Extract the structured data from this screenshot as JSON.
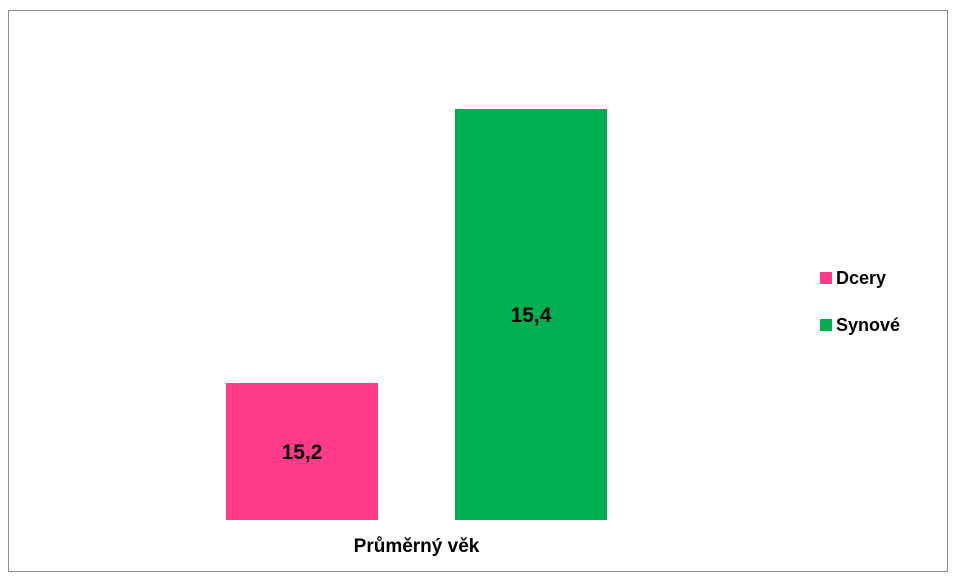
{
  "chart_data": {
    "type": "bar",
    "categories": [
      "Průměrný věk"
    ],
    "series": [
      {
        "name": "Dcery",
        "color": "#ff3b8a",
        "values": [
          15.2
        ],
        "value_labels": [
          "15,2"
        ]
      },
      {
        "name": "Synové",
        "color": "#00b050",
        "values": [
          15.4
        ],
        "value_labels": [
          "15,4"
        ]
      }
    ],
    "ylim": [
      15.1,
      15.45
    ],
    "legend": "right"
  }
}
